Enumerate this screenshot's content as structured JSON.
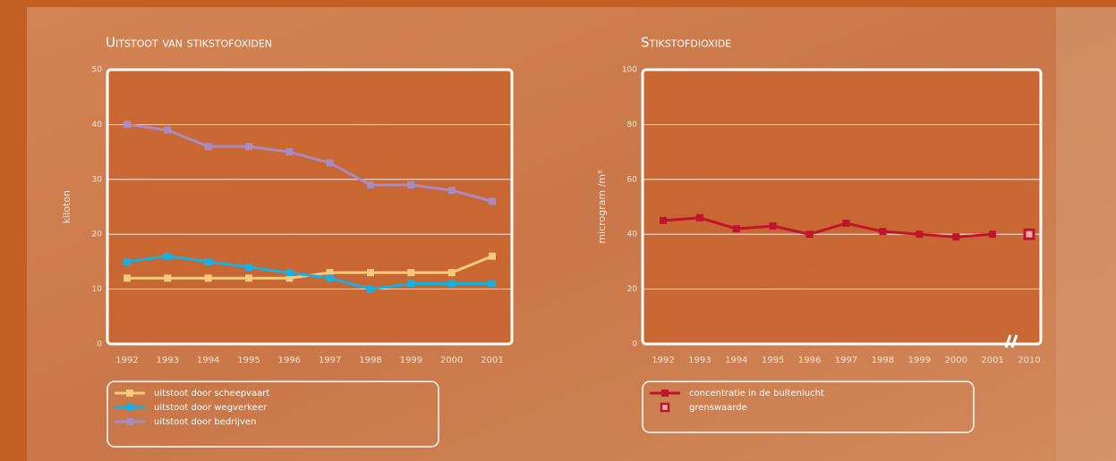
{
  "chart_data": [
    {
      "type": "line",
      "title": "Uitstoot van stikstofoxiden",
      "y_label": "kiloton",
      "categories": [
        "1992",
        "1993",
        "1994",
        "1995",
        "1996",
        "1997",
        "1998",
        "1999",
        "2000",
        "2001"
      ],
      "ylim": [
        0,
        50
      ],
      "yticks": [
        0,
        10,
        20,
        30,
        40,
        50
      ],
      "grid": true,
      "series": [
        {
          "name": "uitstoot door scheepvaart",
          "color": "#f6c97c",
          "line": true,
          "values": [
            12,
            12,
            12,
            12,
            12,
            13,
            13,
            13,
            13,
            16
          ]
        },
        {
          "name": "uitstoot door wegverkeer",
          "color": "#17b0e2",
          "line": true,
          "values": [
            15,
            16,
            15,
            14,
            13,
            12,
            10,
            11,
            11,
            11
          ]
        },
        {
          "name": "uitstoot door bedrijven",
          "color": "#a98bc2",
          "line": true,
          "values": [
            40,
            39,
            36,
            36,
            35,
            33,
            29,
            29,
            28,
            26
          ]
        }
      ]
    },
    {
      "type": "line",
      "title": "Stikstofdioxide",
      "y_label": "microgram /m³",
      "categories": [
        "1992",
        "1993",
        "1994",
        "1995",
        "1996",
        "1997",
        "1998",
        "1999",
        "2000",
        "2001",
        "2010"
      ],
      "ylim": [
        0,
        100
      ],
      "yticks": [
        0,
        20,
        40,
        60,
        80,
        100
      ],
      "grid": true,
      "series": [
        {
          "name": "concentratie in de buitenlucht",
          "color": "#c0142c",
          "line": true,
          "values": [
            45,
            46,
            42,
            43,
            40,
            44,
            41,
            40,
            39,
            40,
            null
          ]
        },
        {
          "name": "grenswaarde",
          "color": "#c0142c",
          "line": false,
          "values": [
            null,
            null,
            null,
            null,
            null,
            null,
            null,
            null,
            null,
            null,
            40
          ]
        }
      ]
    }
  ]
}
